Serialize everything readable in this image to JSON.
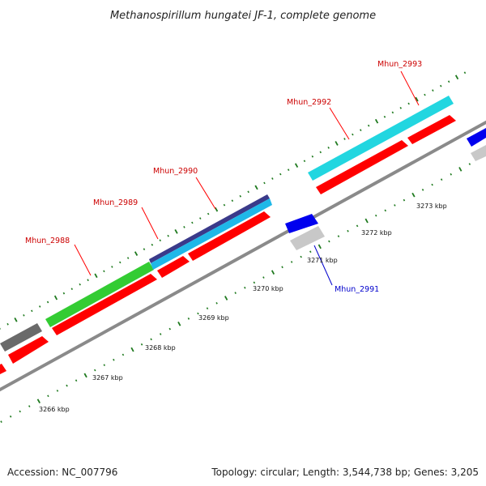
{
  "title": "Methanospirillum hungatei JF-1, complete genome",
  "footer": {
    "accession": "Accession: NC_007796",
    "summary": "Topology: circular; Length: 3,544,738 bp; Genes: 3,205"
  },
  "colors": {
    "backbone": "#8a8a8a",
    "tick_green": "#1f7a1f",
    "label_forward": "#cc0000",
    "label_reverse": "#0000cc",
    "gene_red": "#ff0000",
    "gene_green": "#33cc33",
    "gene_cyan": "#22d6e0",
    "gene_skyblue": "#1fb8e8",
    "gene_navy": "#3a3a8a",
    "gene_darkgray": "#6a6a6a",
    "gene_blue": "#0000ee",
    "gene_lightgray": "#c8c8c8"
  },
  "scale_labels": [
    "3266 kbp",
    "3267 kbp",
    "3268 kbp",
    "3269 kbp",
    "3270 kbp",
    "3271 kbp",
    "3272 kbp",
    "3273 kbp"
  ],
  "gene_labels": [
    {
      "name": "Mhun_2988",
      "strand": "forward"
    },
    {
      "name": "Mhun_2989",
      "strand": "forward"
    },
    {
      "name": "Mhun_2990",
      "strand": "forward"
    },
    {
      "name": "Mhun_2992",
      "strand": "forward"
    },
    {
      "name": "Mhun_2993",
      "strand": "forward"
    },
    {
      "name": "Mhun_2991",
      "strand": "reverse"
    }
  ]
}
